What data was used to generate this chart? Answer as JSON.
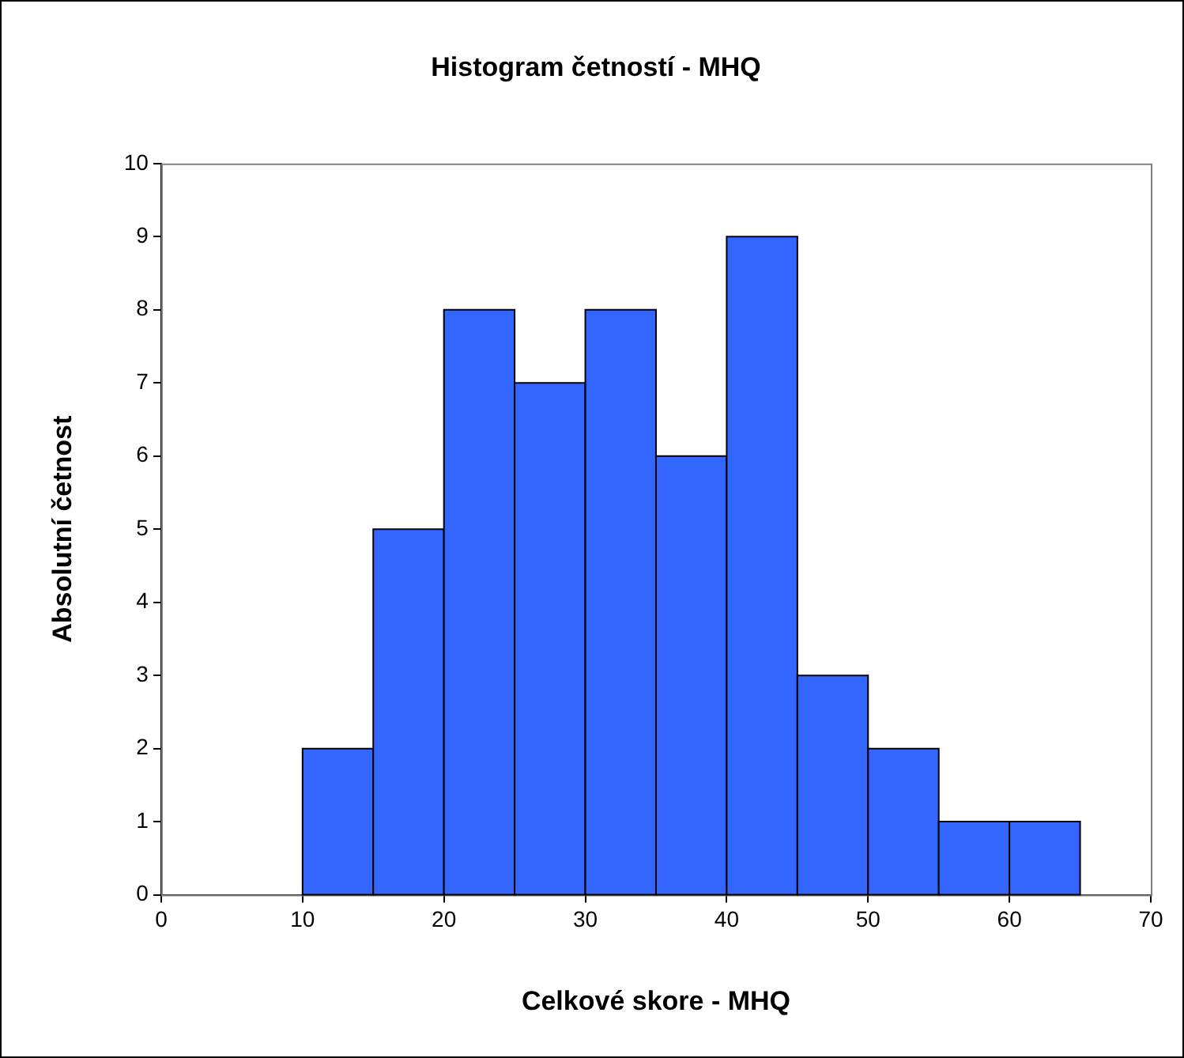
{
  "chart_data": {
    "type": "histogram",
    "title": "Histogram četností - MHQ",
    "xlabel": "Celkové skore - MHQ",
    "ylabel": "Absolutní četnost",
    "bins": [
      10,
      15,
      20,
      25,
      30,
      35,
      40,
      45,
      50,
      55,
      60,
      65
    ],
    "values": [
      2,
      5,
      8,
      7,
      8,
      6,
      9,
      3,
      2,
      1,
      1
    ],
    "color": "#3366ff",
    "xlim": [
      0,
      70
    ],
    "xticks": [
      0,
      10,
      20,
      30,
      40,
      50,
      60,
      70
    ],
    "ylim": [
      0,
      10
    ],
    "yticks": [
      0,
      1,
      2,
      3,
      4,
      5,
      6,
      7,
      8,
      9,
      10
    ],
    "grid": false,
    "legend": false
  }
}
